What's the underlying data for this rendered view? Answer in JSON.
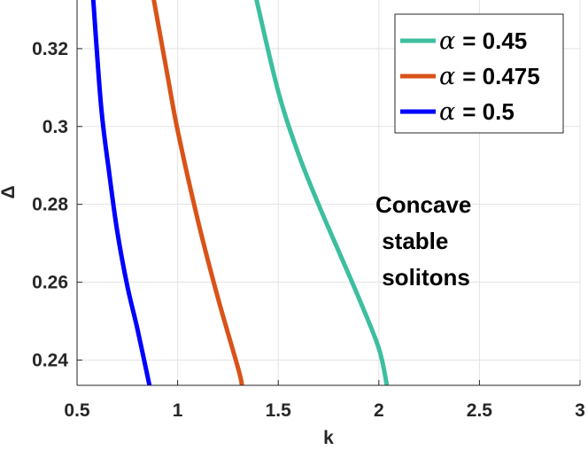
{
  "chart_data": {
    "type": "line",
    "xlabel": "k",
    "ylabel": "Δ",
    "xlim": [
      0.5,
      3
    ],
    "ylim": [
      0.2335,
      0.3325
    ],
    "xticks": [
      "0.5",
      "1",
      "1.5",
      "2",
      "2.5",
      "3"
    ],
    "yticks": [
      "0.24",
      "0.26",
      "0.28",
      "0.3",
      "0.32"
    ],
    "grid": true,
    "legend_position": "top-right",
    "annotation": [
      "Concave",
      " stable",
      " solitons"
    ],
    "series": [
      {
        "name": "α = 0.45",
        "alpha_symbol": "α",
        "label_value": "= 0.45",
        "color": "#3dbf9f",
        "x": [
          1.39,
          1.5,
          1.6,
          1.7,
          1.8,
          1.9,
          2.0,
          2.04
        ],
        "y": [
          0.333,
          0.309,
          0.293,
          0.28,
          0.268,
          0.256,
          0.243,
          0.2335
        ]
      },
      {
        "name": "α = 0.475",
        "alpha_symbol": "α",
        "label_value": "= 0.475",
        "color": "#d95319",
        "x": [
          0.88,
          0.95,
          1.0,
          1.1,
          1.2,
          1.3,
          1.32
        ],
        "y": [
          0.333,
          0.313,
          0.299,
          0.276,
          0.256,
          0.238,
          0.2335
        ]
      },
      {
        "name": "α = 0.5",
        "alpha_symbol": "α",
        "label_value": "= 0.5",
        "color": "#0000ff",
        "x": [
          0.58,
          0.62,
          0.66,
          0.7,
          0.75,
          0.8,
          0.86
        ],
        "y": [
          0.333,
          0.305,
          0.288,
          0.273,
          0.259,
          0.248,
          0.2335
        ]
      }
    ]
  }
}
